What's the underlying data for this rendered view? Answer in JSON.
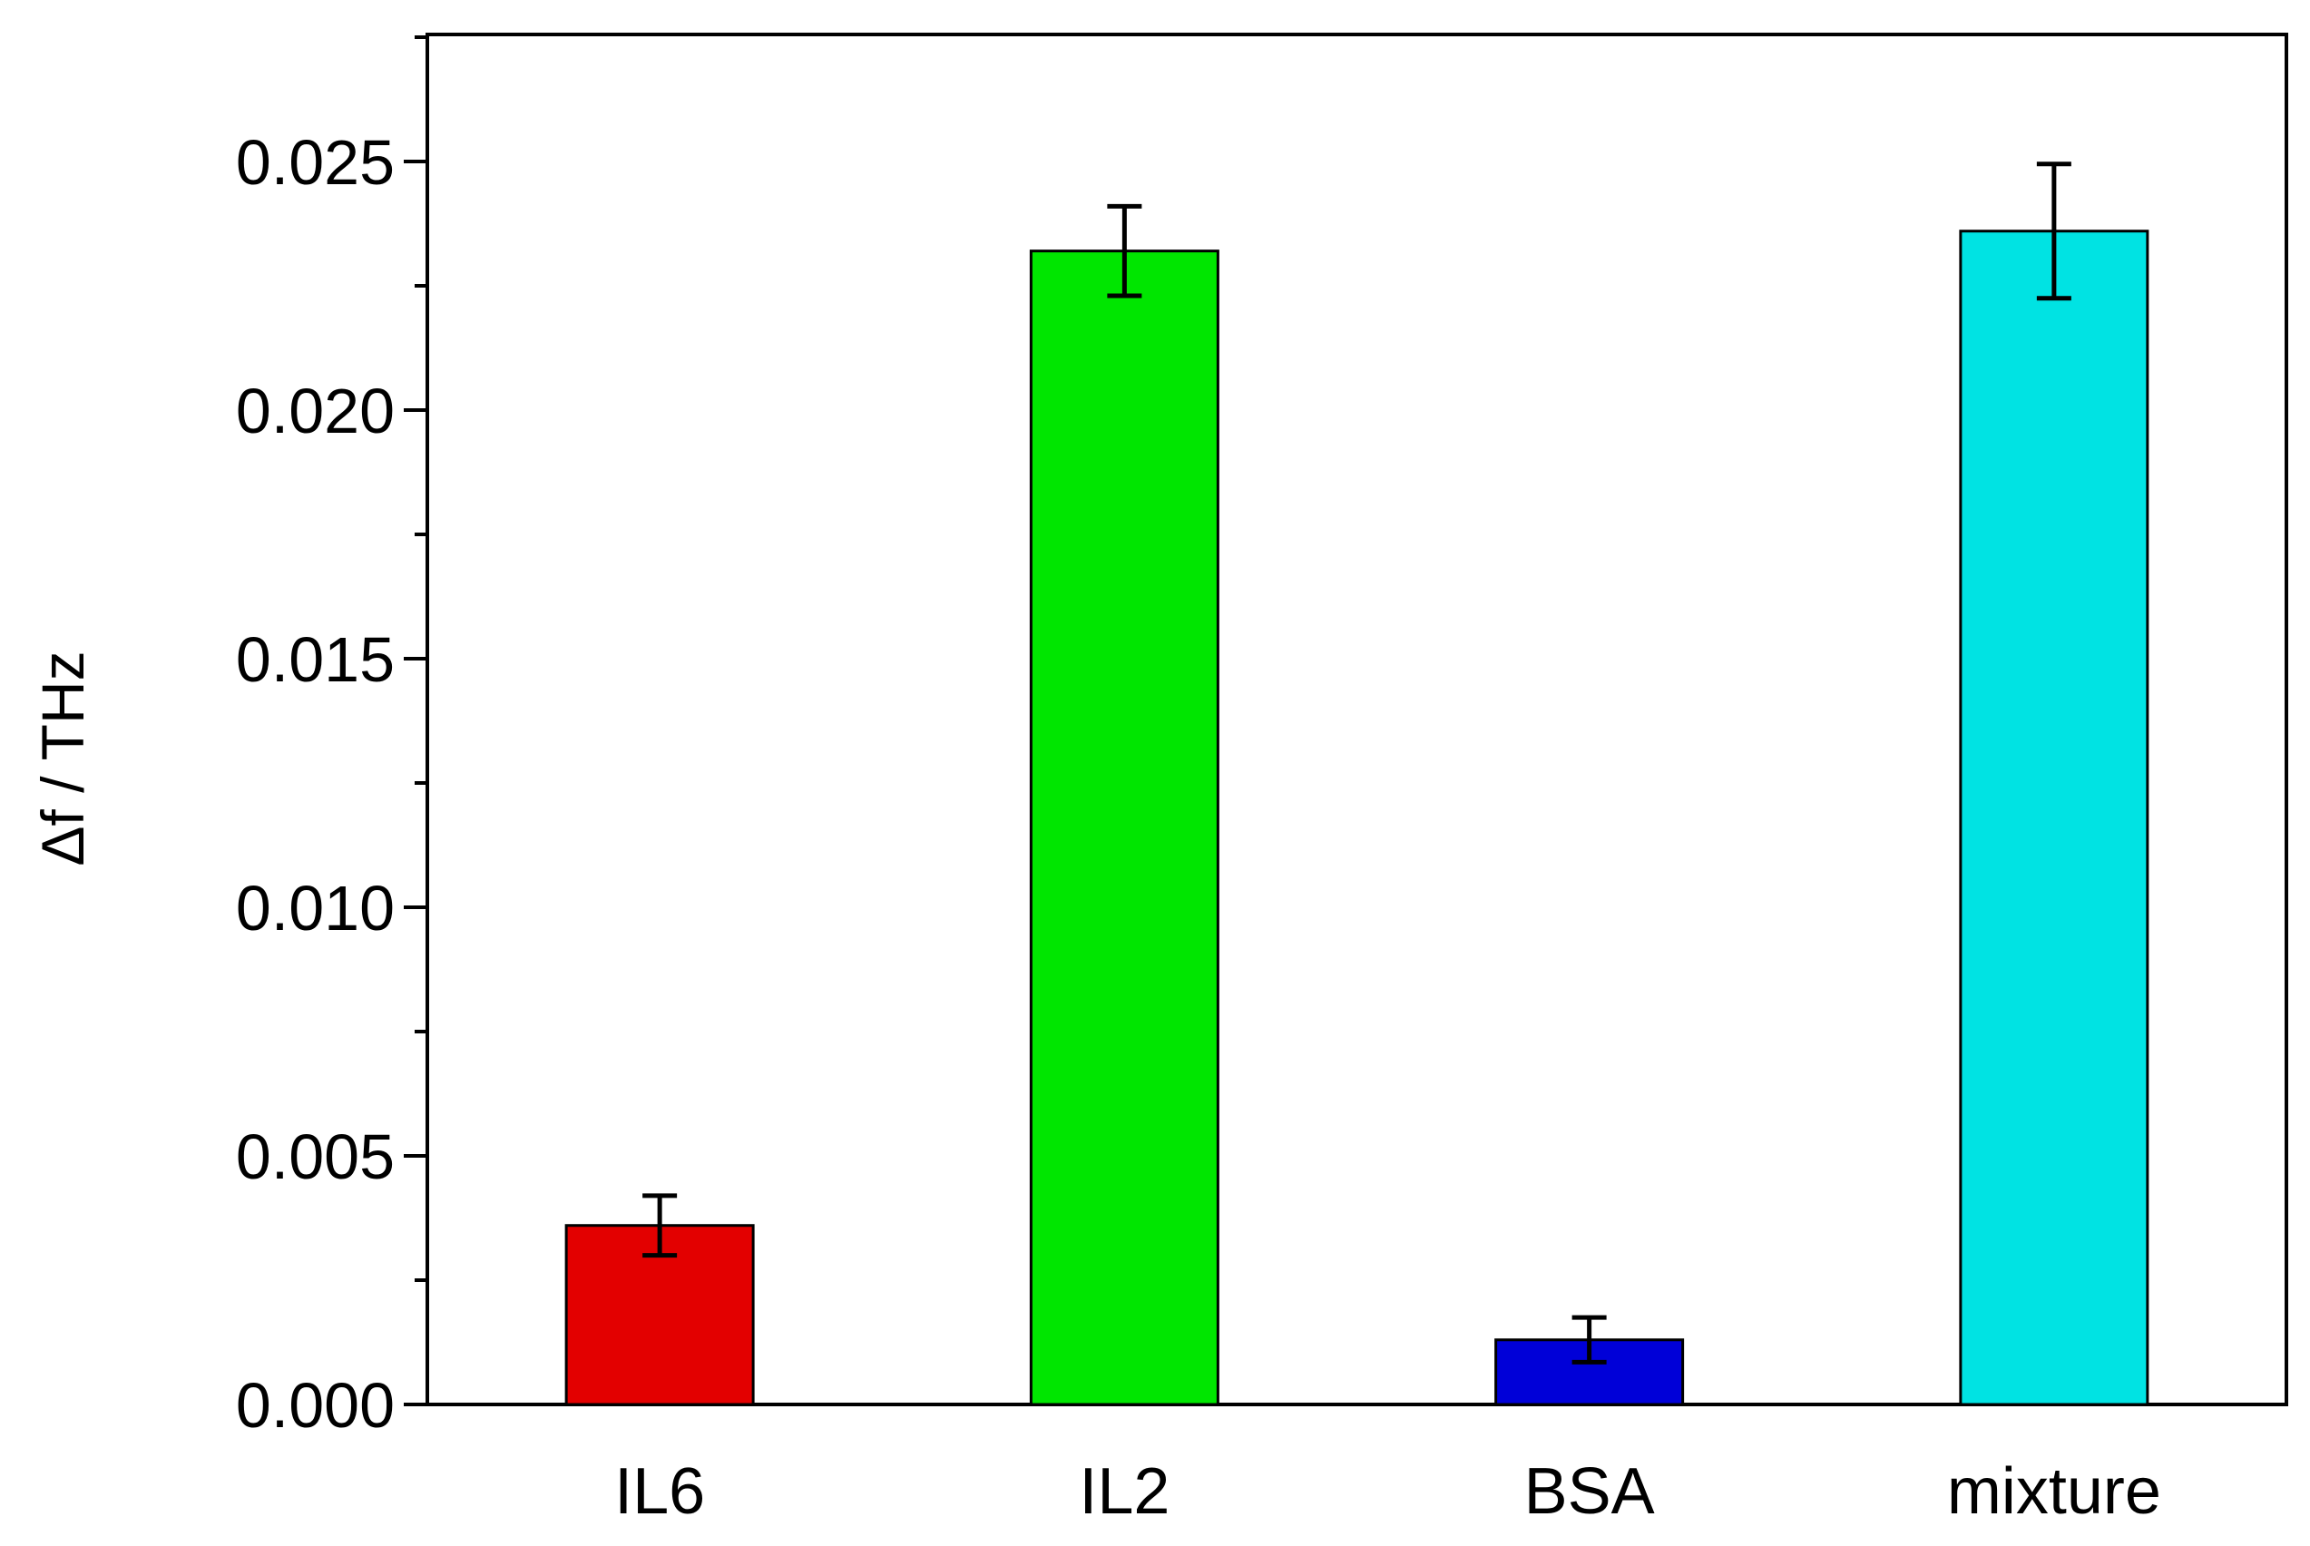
{
  "chart_data": {
    "type": "bar",
    "categories": [
      "IL6",
      "IL2",
      "BSA",
      "mixture"
    ],
    "values": [
      0.0036,
      0.0232,
      0.0013,
      0.0236
    ],
    "errors": [
      0.0006,
      0.0009,
      0.00045,
      0.00135
    ],
    "colors": [
      "#e30000",
      "#00e600",
      "#0000d8",
      "#00e3e3"
    ],
    "title": "",
    "xlabel": "",
    "ylabel": "Δf / THz",
    "ylim": [
      0,
      0.0275
    ],
    "yticks": [
      "0.000",
      "0.005",
      "0.010",
      "0.015",
      "0.020",
      "0.025"
    ],
    "grid": false
  }
}
